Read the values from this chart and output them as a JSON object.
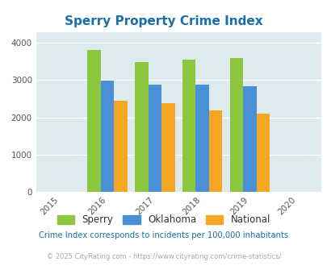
{
  "title": "Sperry Property Crime Index",
  "years": [
    2016,
    2017,
    2018,
    2019
  ],
  "sperry": [
    3820,
    3480,
    3560,
    3600
  ],
  "oklahoma": [
    2995,
    2880,
    2880,
    2840
  ],
  "national": [
    2450,
    2380,
    2175,
    2095
  ],
  "xlim": [
    2014.5,
    2020.5
  ],
  "ylim": [
    0,
    4300
  ],
  "yticks": [
    0,
    1000,
    2000,
    3000,
    4000
  ],
  "xticks": [
    2015,
    2016,
    2017,
    2018,
    2019,
    2020
  ],
  "bar_width": 0.28,
  "color_sperry": "#8dc63f",
  "color_oklahoma": "#4a90d9",
  "color_national": "#f5a623",
  "bg_color": "#ddeaee",
  "title_color": "#1a6fa8",
  "legend_labels": [
    "Sperry",
    "Oklahoma",
    "National"
  ],
  "footnote1": "Crime Index corresponds to incidents per 100,000 inhabitants",
  "footnote2": "© 2025 CityRating.com - https://www.cityrating.com/crime-statistics/",
  "footnote1_color": "#1a6fa8",
  "footnote2_color": "#aaaaaa"
}
